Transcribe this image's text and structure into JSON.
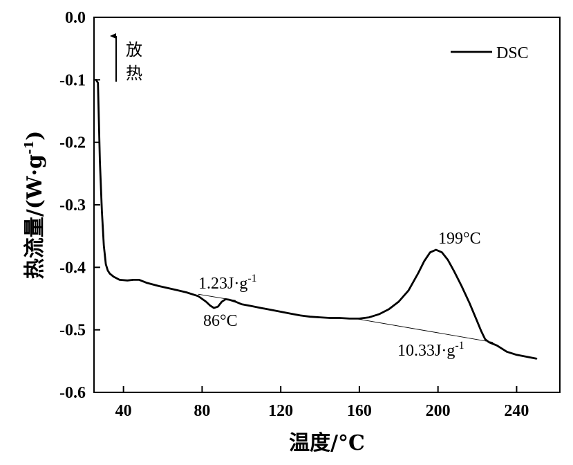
{
  "chart_data": {
    "type": "line",
    "xlabel": "温度/°C",
    "ylabel": "热流量/(W·g",
    "ylabel_sup": "-1",
    "ylabel_close": ")",
    "xlim": [
      25,
      262
    ],
    "ylim": [
      -0.6,
      0.0
    ],
    "x_ticks": [
      40,
      80,
      120,
      160,
      200,
      240
    ],
    "x_tick_labels": [
      "40",
      "80",
      "120",
      "160",
      "200",
      "240"
    ],
    "y_ticks": [
      0.0,
      -0.1,
      -0.2,
      -0.3,
      -0.4,
      -0.5,
      -0.6
    ],
    "y_tick_labels": [
      "0.0",
      "-0.1",
      "-0.2",
      "-0.3",
      "-0.4",
      "-0.5",
      "-0.6"
    ],
    "grid": false,
    "legend": {
      "position": "top-right",
      "entries": [
        "DSC"
      ]
    },
    "series": [
      {
        "name": "DSC",
        "x": [
          26,
          27,
          28,
          29,
          30,
          31,
          32,
          33,
          35,
          38,
          42,
          45,
          48,
          52,
          58,
          65,
          72,
          78,
          82,
          84,
          86,
          88,
          90,
          92,
          94,
          97,
          100,
          105,
          110,
          115,
          120,
          125,
          130,
          135,
          140,
          145,
          150,
          155,
          158,
          160,
          165,
          170,
          175,
          180,
          185,
          190,
          193,
          196,
          199,
          202,
          205,
          208,
          212,
          216,
          220,
          222,
          224,
          226,
          230,
          235,
          240,
          245,
          250
        ],
        "y": [
          -0.1,
          -0.105,
          -0.23,
          -0.31,
          -0.365,
          -0.395,
          -0.405,
          -0.41,
          -0.415,
          -0.42,
          -0.421,
          -0.42,
          -0.42,
          -0.425,
          -0.43,
          -0.435,
          -0.44,
          -0.446,
          -0.455,
          -0.461,
          -0.465,
          -0.463,
          -0.455,
          -0.451,
          -0.452,
          -0.455,
          -0.459,
          -0.462,
          -0.465,
          -0.468,
          -0.471,
          -0.474,
          -0.477,
          -0.479,
          -0.48,
          -0.481,
          -0.481,
          -0.482,
          -0.482,
          -0.482,
          -0.48,
          -0.475,
          -0.467,
          -0.455,
          -0.437,
          -0.409,
          -0.39,
          -0.376,
          -0.372,
          -0.376,
          -0.388,
          -0.405,
          -0.43,
          -0.457,
          -0.487,
          -0.502,
          -0.515,
          -0.52,
          -0.525,
          -0.535,
          -0.54,
          -0.543,
          -0.546
        ]
      }
    ],
    "baselines": [
      {
        "x": [
          78,
          97
        ],
        "y": [
          -0.443,
          -0.453
        ]
      },
      {
        "x": [
          158,
          228
        ],
        "y": [
          -0.482,
          -0.52
        ]
      }
    ],
    "annotations": {
      "peak_temp": "199°C",
      "valley_temp": "86°C",
      "enthalpy_small": "1.23J·g",
      "enthalpy_small_sup": "-1",
      "enthalpy_large": "10.33J·g",
      "enthalpy_large_sup": "-1",
      "exo_label_1": "放",
      "exo_label_2": "热"
    }
  }
}
